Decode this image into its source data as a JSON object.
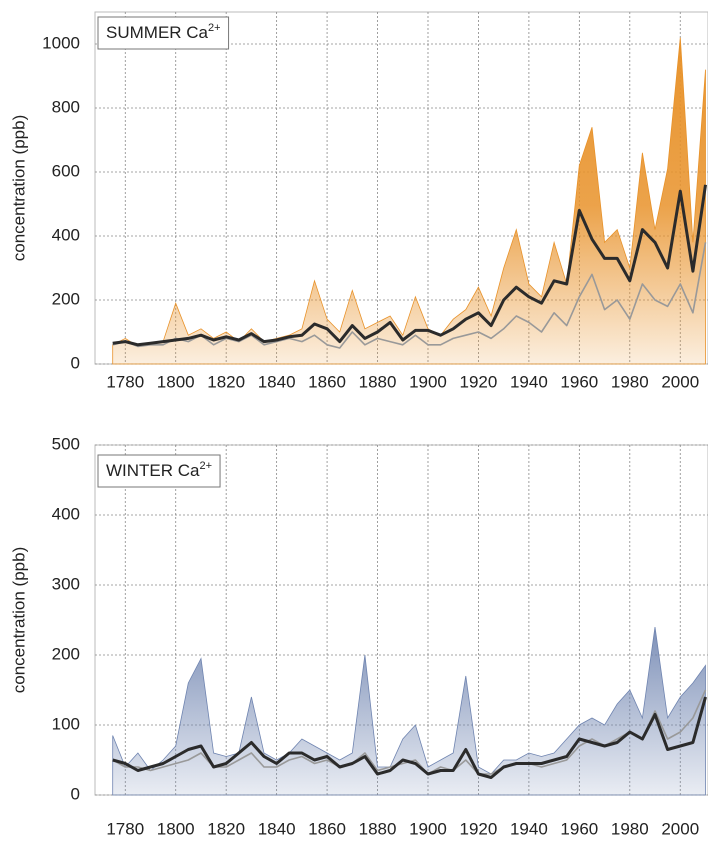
{
  "chart_data": [
    {
      "type": "line",
      "title": "SUMMER Ca",
      "title_superscript": "2+",
      "ylabel": "concentration (ppb)",
      "x": [
        1775,
        1780,
        1785,
        1790,
        1795,
        1800,
        1805,
        1810,
        1815,
        1820,
        1825,
        1830,
        1835,
        1840,
        1845,
        1850,
        1855,
        1860,
        1865,
        1870,
        1875,
        1880,
        1885,
        1890,
        1895,
        1900,
        1905,
        1910,
        1915,
        1920,
        1925,
        1930,
        1935,
        1940,
        1945,
        1950,
        1955,
        1960,
        1965,
        1970,
        1975,
        1980,
        1985,
        1990,
        1995,
        2000,
        2005,
        2010
      ],
      "series": [
        {
          "kind": "area",
          "color": "#e8922a",
          "values": [
            60,
            80,
            55,
            60,
            70,
            190,
            90,
            110,
            80,
            100,
            70,
            110,
            70,
            80,
            90,
            110,
            260,
            140,
            100,
            230,
            110,
            130,
            150,
            90,
            210,
            110,
            90,
            140,
            170,
            240,
            150,
            300,
            420,
            250,
            210,
            380,
            250,
            620,
            740,
            380,
            420,
            300,
            660,
            420,
            610,
            1020,
            380,
            920
          ]
        },
        {
          "kind": "line",
          "color": "#999999",
          "values": [
            60,
            70,
            55,
            60,
            60,
            80,
            70,
            90,
            60,
            80,
            70,
            90,
            60,
            70,
            80,
            70,
            90,
            60,
            50,
            100,
            60,
            80,
            70,
            60,
            90,
            60,
            60,
            80,
            90,
            100,
            80,
            110,
            150,
            130,
            100,
            160,
            120,
            210,
            280,
            170,
            200,
            140,
            250,
            200,
            180,
            250,
            160,
            380
          ]
        },
        {
          "kind": "line",
          "color": "#2b2b2b",
          "values": [
            65,
            70,
            60,
            65,
            70,
            75,
            80,
            90,
            75,
            85,
            75,
            95,
            70,
            75,
            85,
            90,
            125,
            110,
            70,
            120,
            80,
            100,
            130,
            75,
            105,
            105,
            90,
            110,
            140,
            160,
            120,
            200,
            240,
            210,
            190,
            260,
            250,
            480,
            390,
            330,
            330,
            260,
            420,
            380,
            300,
            540,
            290,
            560
          ]
        }
      ],
      "xlim": [
        1768,
        2011
      ],
      "xticks": [
        1780,
        1800,
        1820,
        1840,
        1860,
        1880,
        1900,
        1920,
        1940,
        1960,
        1980,
        2000
      ],
      "ylim": [
        0,
        1100
      ],
      "yticks": [
        0,
        200,
        400,
        600,
        800,
        1000
      ],
      "grid": true
    },
    {
      "type": "line",
      "title": "WINTER Ca",
      "title_superscript": "2+",
      "ylabel": "concentration (ppb)",
      "x": [
        1775,
        1780,
        1785,
        1790,
        1795,
        1800,
        1805,
        1810,
        1815,
        1820,
        1825,
        1830,
        1835,
        1840,
        1845,
        1850,
        1855,
        1860,
        1865,
        1870,
        1875,
        1880,
        1885,
        1890,
        1895,
        1900,
        1905,
        1910,
        1915,
        1920,
        1925,
        1930,
        1935,
        1940,
        1945,
        1950,
        1955,
        1960,
        1965,
        1970,
        1975,
        1980,
        1985,
        1990,
        1995,
        2000,
        2005,
        2010
      ],
      "series": [
        {
          "kind": "area",
          "color": "#6f84b0",
          "values": [
            85,
            40,
            60,
            35,
            50,
            70,
            160,
            195,
            60,
            55,
            60,
            140,
            60,
            50,
            60,
            80,
            70,
            60,
            50,
            60,
            200,
            40,
            40,
            80,
            100,
            40,
            50,
            60,
            170,
            40,
            30,
            50,
            50,
            60,
            55,
            60,
            80,
            100,
            110,
            100,
            130,
            150,
            110,
            240,
            110,
            140,
            160,
            185
          ]
        },
        {
          "kind": "line",
          "color": "#999999",
          "values": [
            50,
            40,
            40,
            35,
            40,
            45,
            50,
            60,
            40,
            40,
            50,
            60,
            40,
            40,
            50,
            55,
            45,
            50,
            40,
            45,
            60,
            35,
            40,
            45,
            50,
            30,
            40,
            35,
            50,
            30,
            30,
            40,
            45,
            45,
            40,
            45,
            50,
            70,
            80,
            70,
            80,
            90,
            80,
            120,
            80,
            90,
            110,
            150
          ]
        },
        {
          "kind": "line",
          "color": "#2b2b2b",
          "values": [
            50,
            45,
            35,
            40,
            45,
            55,
            65,
            70,
            40,
            45,
            60,
            75,
            55,
            45,
            60,
            60,
            50,
            55,
            40,
            45,
            55,
            30,
            35,
            50,
            45,
            30,
            35,
            35,
            65,
            30,
            25,
            40,
            45,
            45,
            45,
            50,
            55,
            80,
            75,
            70,
            75,
            90,
            80,
            115,
            65,
            70,
            75,
            140
          ]
        }
      ],
      "xlim": [
        1768,
        2011
      ],
      "xticks": [
        1780,
        1800,
        1820,
        1840,
        1860,
        1880,
        1900,
        1920,
        1940,
        1960,
        1980,
        2000
      ],
      "ylim": [
        0,
        500
      ],
      "yticks": [
        0,
        100,
        200,
        300,
        400,
        500
      ],
      "grid": true
    }
  ]
}
